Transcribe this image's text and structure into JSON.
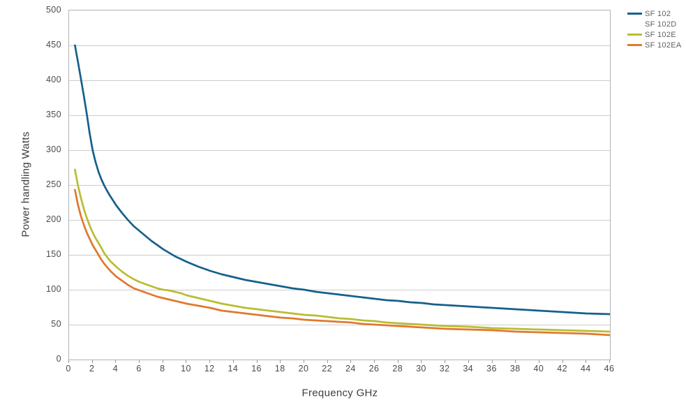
{
  "chart_data": {
    "type": "line",
    "title": "",
    "xlabel": "Frequency GHz",
    "ylabel": "Power handling Watts",
    "xlim": [
      0,
      46
    ],
    "ylim": [
      0,
      500
    ],
    "x_ticks": [
      0,
      2,
      4,
      6,
      8,
      10,
      12,
      14,
      16,
      18,
      20,
      22,
      24,
      26,
      28,
      30,
      32,
      34,
      36,
      38,
      40,
      42,
      44,
      46
    ],
    "y_ticks": [
      0,
      50,
      100,
      150,
      200,
      250,
      300,
      350,
      400,
      450,
      500
    ],
    "grid": "horizontal-only",
    "legend_position": "outside-top-right",
    "series": [
      {
        "name": "SF 102",
        "color": "#15608c",
        "points": [
          [
            0.5,
            450
          ],
          [
            0.75,
            427
          ],
          [
            1,
            403
          ],
          [
            1.25,
            378
          ],
          [
            1.5,
            352
          ],
          [
            1.75,
            324
          ],
          [
            2,
            300
          ],
          [
            2.25,
            283
          ],
          [
            2.5,
            269
          ],
          [
            2.75,
            258
          ],
          [
            3,
            249
          ],
          [
            3.25,
            241
          ],
          [
            3.5,
            234
          ],
          [
            4,
            221
          ],
          [
            4.5,
            210
          ],
          [
            5,
            200
          ],
          [
            5.5,
            191
          ],
          [
            6,
            184
          ],
          [
            6.5,
            177
          ],
          [
            7,
            170
          ],
          [
            7.5,
            164
          ],
          [
            8,
            158
          ],
          [
            8.5,
            153
          ],
          [
            9,
            148
          ],
          [
            9.5,
            144
          ],
          [
            10,
            140
          ],
          [
            11,
            133
          ],
          [
            12,
            127
          ],
          [
            13,
            122
          ],
          [
            14,
            118
          ],
          [
            15,
            114
          ],
          [
            16,
            111
          ],
          [
            17,
            108
          ],
          [
            18,
            105
          ],
          [
            19,
            102
          ],
          [
            20,
            100
          ],
          [
            21,
            97
          ],
          [
            22,
            95
          ],
          [
            23,
            93
          ],
          [
            24,
            91
          ],
          [
            25,
            89
          ],
          [
            26,
            87
          ],
          [
            27,
            85
          ],
          [
            28,
            84
          ],
          [
            29,
            82
          ],
          [
            30,
            81
          ],
          [
            31,
            79
          ],
          [
            32,
            78
          ],
          [
            33,
            77
          ],
          [
            34,
            76
          ],
          [
            35,
            75
          ],
          [
            36,
            74
          ],
          [
            37,
            73
          ],
          [
            38,
            72
          ],
          [
            39,
            71
          ],
          [
            40,
            70
          ],
          [
            41,
            69
          ],
          [
            42,
            68
          ],
          [
            43,
            67
          ],
          [
            44,
            66
          ],
          [
            45,
            65.5
          ],
          [
            46,
            65
          ]
        ]
      },
      {
        "name": "SF 102D",
        "color": null,
        "points": []
      },
      {
        "name": "SF 102E",
        "color": "#b9bd32",
        "points": [
          [
            0.5,
            272
          ],
          [
            0.75,
            250
          ],
          [
            1,
            232
          ],
          [
            1.25,
            216
          ],
          [
            1.5,
            203
          ],
          [
            1.75,
            192
          ],
          [
            2,
            182
          ],
          [
            2.25,
            174
          ],
          [
            2.5,
            167
          ],
          [
            2.75,
            160
          ],
          [
            3,
            152
          ],
          [
            3.5,
            141
          ],
          [
            4,
            133
          ],
          [
            4.5,
            126
          ],
          [
            5,
            120
          ],
          [
            5.5,
            115
          ],
          [
            6,
            111
          ],
          [
            6.5,
            108
          ],
          [
            7,
            105
          ],
          [
            7.5,
            102
          ],
          [
            8,
            100
          ],
          [
            8.5,
            99
          ],
          [
            9,
            97
          ],
          [
            9.5,
            95
          ],
          [
            10,
            92
          ],
          [
            11,
            88
          ],
          [
            12,
            84
          ],
          [
            13,
            80
          ],
          [
            14,
            77
          ],
          [
            15,
            74
          ],
          [
            16,
            72
          ],
          [
            17,
            70
          ],
          [
            18,
            68
          ],
          [
            19,
            66
          ],
          [
            20,
            64
          ],
          [
            21,
            63
          ],
          [
            22,
            61
          ],
          [
            23,
            59
          ],
          [
            24,
            58
          ],
          [
            25,
            56
          ],
          [
            26,
            55
          ],
          [
            27,
            53
          ],
          [
            28,
            52
          ],
          [
            29,
            51
          ],
          [
            30,
            50
          ],
          [
            31,
            49
          ],
          [
            32,
            48
          ],
          [
            33,
            47.5
          ],
          [
            34,
            47
          ],
          [
            35,
            46
          ],
          [
            36,
            45
          ],
          [
            37,
            44.5
          ],
          [
            38,
            44
          ],
          [
            39,
            43.5
          ],
          [
            40,
            43
          ],
          [
            41,
            42.5
          ],
          [
            42,
            42
          ],
          [
            43,
            41.5
          ],
          [
            44,
            41
          ],
          [
            45,
            40.5
          ],
          [
            46,
            40
          ]
        ]
      },
      {
        "name": "SF 102EA",
        "color": "#e0792e",
        "points": [
          [
            0.5,
            243
          ],
          [
            0.75,
            222
          ],
          [
            1,
            206
          ],
          [
            1.25,
            193
          ],
          [
            1.5,
            182
          ],
          [
            1.75,
            173
          ],
          [
            2,
            164
          ],
          [
            2.25,
            157
          ],
          [
            2.5,
            150
          ],
          [
            2.75,
            143
          ],
          [
            3,
            137
          ],
          [
            3.5,
            127
          ],
          [
            4,
            119
          ],
          [
            4.5,
            113
          ],
          [
            5,
            107
          ],
          [
            5.5,
            102
          ],
          [
            6,
            99
          ],
          [
            6.5,
            96
          ],
          [
            7,
            93
          ],
          [
            7.5,
            90
          ],
          [
            8,
            88
          ],
          [
            8.5,
            86
          ],
          [
            9,
            84
          ],
          [
            9.5,
            82
          ],
          [
            10,
            80
          ],
          [
            11,
            77
          ],
          [
            12,
            74
          ],
          [
            13,
            70
          ],
          [
            14,
            68
          ],
          [
            15,
            66
          ],
          [
            16,
            64
          ],
          [
            17,
            62
          ],
          [
            18,
            60
          ],
          [
            19,
            59
          ],
          [
            20,
            57
          ],
          [
            21,
            56
          ],
          [
            22,
            55
          ],
          [
            23,
            54
          ],
          [
            24,
            53
          ],
          [
            25,
            51
          ],
          [
            26,
            50
          ],
          [
            27,
            49
          ],
          [
            28,
            48
          ],
          [
            29,
            47
          ],
          [
            30,
            46
          ],
          [
            31,
            45
          ],
          [
            32,
            44
          ],
          [
            33,
            43.5
          ],
          [
            34,
            43
          ],
          [
            35,
            42.5
          ],
          [
            36,
            42
          ],
          [
            37,
            41
          ],
          [
            38,
            40
          ],
          [
            39,
            39.5
          ],
          [
            40,
            39
          ],
          [
            41,
            38.5
          ],
          [
            42,
            38
          ],
          [
            43,
            37.5
          ],
          [
            44,
            37
          ],
          [
            45,
            36
          ],
          [
            46,
            35
          ]
        ]
      }
    ]
  },
  "colors": {
    "background": "#ffffff",
    "grid": "#cccccc",
    "plot_border": "#b3b3b3",
    "tick_mark": "#9b9b9b",
    "tick_text": "#4a4a4a",
    "axis_title_text": "#3d3d3d",
    "legend_text": "#5f5f5f"
  }
}
